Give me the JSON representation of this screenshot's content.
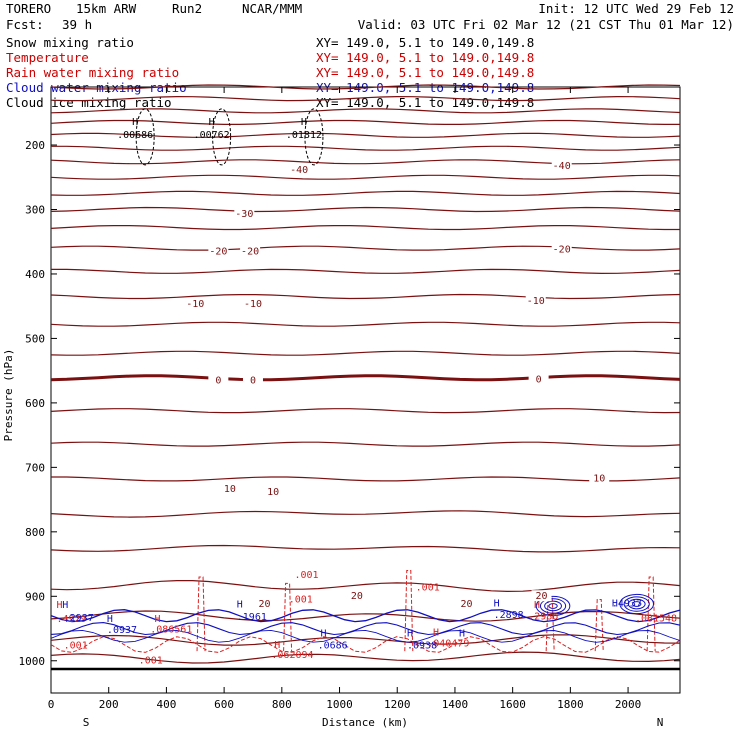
{
  "header": {
    "model": "TORERO",
    "resolution": "15km ARW",
    "run": "Run2",
    "org": "NCAR/MMM",
    "init": "Init: 12 UTC Wed 29 Feb 12",
    "fcst_label": "Fcst:",
    "fcst_value": "39 h",
    "valid": "Valid: 03 UTC Fri 02 Mar 12 (21 CST Thu 01 Mar 12)"
  },
  "fields": [
    {
      "name": "Snow mixing ratio",
      "xy": "XY= 149.0,  5.1 to 149.0,149.8",
      "color": "#000000"
    },
    {
      "name": "Temperature",
      "xy": "XY= 149.0,  5.1 to 149.0,149.8",
      "color": "#cc0000"
    },
    {
      "name": "Rain water mixing ratio",
      "xy": "XY= 149.0,  5.1 to 149.0,149.8",
      "color": "#cc0000"
    },
    {
      "name": "Cloud water mixing ratio",
      "xy": "XY= 149.0,  5.1 to 149.0,149.8",
      "color": "#1010c0"
    },
    {
      "name": "Cloud ice mixing ratio",
      "xy": "XY= 149.0,  5.1 to 149.0,149.8",
      "color": "#000000"
    }
  ],
  "colors": {
    "temperature": "#7a1010",
    "rain": "#dd2020",
    "cloud_water": "#1010c0",
    "snow": "#000000"
  },
  "chart_data": {
    "type": "line",
    "subtype": "vertical cross-section contour",
    "xlabel": "Distance (km)",
    "ylabel": "Pressure (hPa)",
    "xlim": [
      0,
      2180
    ],
    "ylim": [
      1050,
      110
    ],
    "x_ticks": [
      0,
      200,
      400,
      600,
      800,
      1000,
      1200,
      1400,
      1600,
      1800,
      2000
    ],
    "y_ticks": [
      200,
      300,
      400,
      500,
      600,
      700,
      800,
      900,
      1000
    ],
    "x_end_labels": {
      "left": "S",
      "right": "N"
    },
    "temperature_isotherms": [
      {
        "p": 110
      },
      {
        "p": 128
      },
      {
        "p": 147
      },
      {
        "p": 165
      },
      {
        "p": 185
      },
      {
        "p": 205
      },
      {
        "p": 226
      },
      {
        "p": 250
      },
      {
        "p": 275
      },
      {
        "p": 300
      },
      {
        "p": 328
      },
      {
        "p": 360
      },
      {
        "p": 396
      },
      {
        "p": 435
      },
      {
        "p": 478
      },
      {
        "p": 523
      },
      {
        "p": 561,
        "bold": true
      },
      {
        "p": 612
      },
      {
        "p": 664
      },
      {
        "p": 718
      },
      {
        "p": 772
      },
      {
        "p": 826
      },
      {
        "p": 884
      },
      {
        "p": 931
      },
      {
        "p": 968
      },
      {
        "p": 995
      }
    ],
    "temperature_labels": [
      {
        "text": "-40",
        "x": 860,
        "p": 242
      },
      {
        "text": "-40",
        "x": 1770,
        "p": 236
      },
      {
        "text": "-30",
        "x": 670,
        "p": 310
      },
      {
        "text": "-20",
        "x": 580,
        "p": 368
      },
      {
        "text": "-20",
        "x": 690,
        "p": 368
      },
      {
        "text": "-20",
        "x": 1770,
        "p": 365
      },
      {
        "text": "-10",
        "x": 500,
        "p": 450
      },
      {
        "text": "-10",
        "x": 700,
        "p": 450
      },
      {
        "text": "-10",
        "x": 1680,
        "p": 445
      },
      {
        "text": "0",
        "x": 580,
        "p": 568
      },
      {
        "text": "0",
        "x": 700,
        "p": 568
      },
      {
        "text": "0",
        "x": 1690,
        "p": 567
      },
      {
        "text": "10",
        "x": 620,
        "p": 737
      },
      {
        "text": "10",
        "x": 770,
        "p": 741
      },
      {
        "text": "10",
        "x": 1900,
        "p": 720
      },
      {
        "text": "20",
        "x": 740,
        "p": 915
      },
      {
        "text": "20",
        "x": 1060,
        "p": 903
      },
      {
        "text": "20",
        "x": 1440,
        "p": 915
      },
      {
        "text": "20",
        "x": 1700,
        "p": 903
      }
    ],
    "snow_maxima": [
      {
        "label": "H",
        "value": ".00686",
        "x": 205,
        "p": 175
      },
      {
        "label": "H",
        "value": ".00762",
        "x": 470,
        "p": 175
      },
      {
        "label": "H",
        "value": ".01812",
        "x": 790,
        "p": 175
      }
    ],
    "rain_labels": [
      {
        "text": ".001",
        "x": 30,
        "p": 981
      },
      {
        "text": ".001",
        "x": 290,
        "p": 1004
      },
      {
        "text": ".001",
        "x": 830,
        "p": 872
      },
      {
        "text": ".001",
        "x": 810,
        "p": 910
      },
      {
        "text": ".001",
        "x": 1250,
        "p": 891
      },
      {
        "text": "H",
        "x": 5,
        "p": 918
      },
      {
        "text": ".4929",
        "x": 5,
        "p": 940
      },
      {
        "text": "H",
        "x": 345,
        "p": 940
      },
      {
        "text": ".086561",
        "x": 330,
        "p": 956
      },
      {
        "text": "H",
        "x": 760,
        "p": 980
      },
      {
        "text": ".062094",
        "x": 750,
        "p": 996
      },
      {
        "text": "H",
        "x": 1310,
        "p": 961
      },
      {
        "text": ".040479",
        "x": 1290,
        "p": 978
      },
      {
        "text": "H",
        "x": 1660,
        "p": 918
      },
      {
        "text": ".2986",
        "x": 1640,
        "p": 936
      },
      {
        "text": ".081548",
        "x": 2010,
        "p": 939
      }
    ],
    "cloud_water_labels": [
      {
        "text": "H",
        "x": 25,
        "p": 918
      },
      {
        "text": ".2937",
        "x": 30,
        "p": 938
      },
      {
        "text": "H",
        "x": 180,
        "p": 940
      },
      {
        "text": ".0937",
        "x": 180,
        "p": 957
      },
      {
        "text": "H",
        "x": 630,
        "p": 917
      },
      {
        "text": ".1961",
        "x": 630,
        "p": 937
      },
      {
        "text": "H",
        "x": 920,
        "p": 962
      },
      {
        "text": ".0686",
        "x": 910,
        "p": 981
      },
      {
        "text": "H",
        "x": 1220,
        "p": 962
      },
      {
        "text": ".0938",
        "x": 1220,
        "p": 981
      },
      {
        "text": "H",
        "x": 1400,
        "p": 962
      },
      {
        "text": "H",
        "x": 1520,
        "p": 916
      },
      {
        "text": ".2898",
        "x": 1520,
        "p": 934
      },
      {
        "text": "H",
        "x": 1930,
        "p": 916
      },
      {
        "text": ".4937",
        "x": 1930,
        "p": 916
      }
    ]
  }
}
